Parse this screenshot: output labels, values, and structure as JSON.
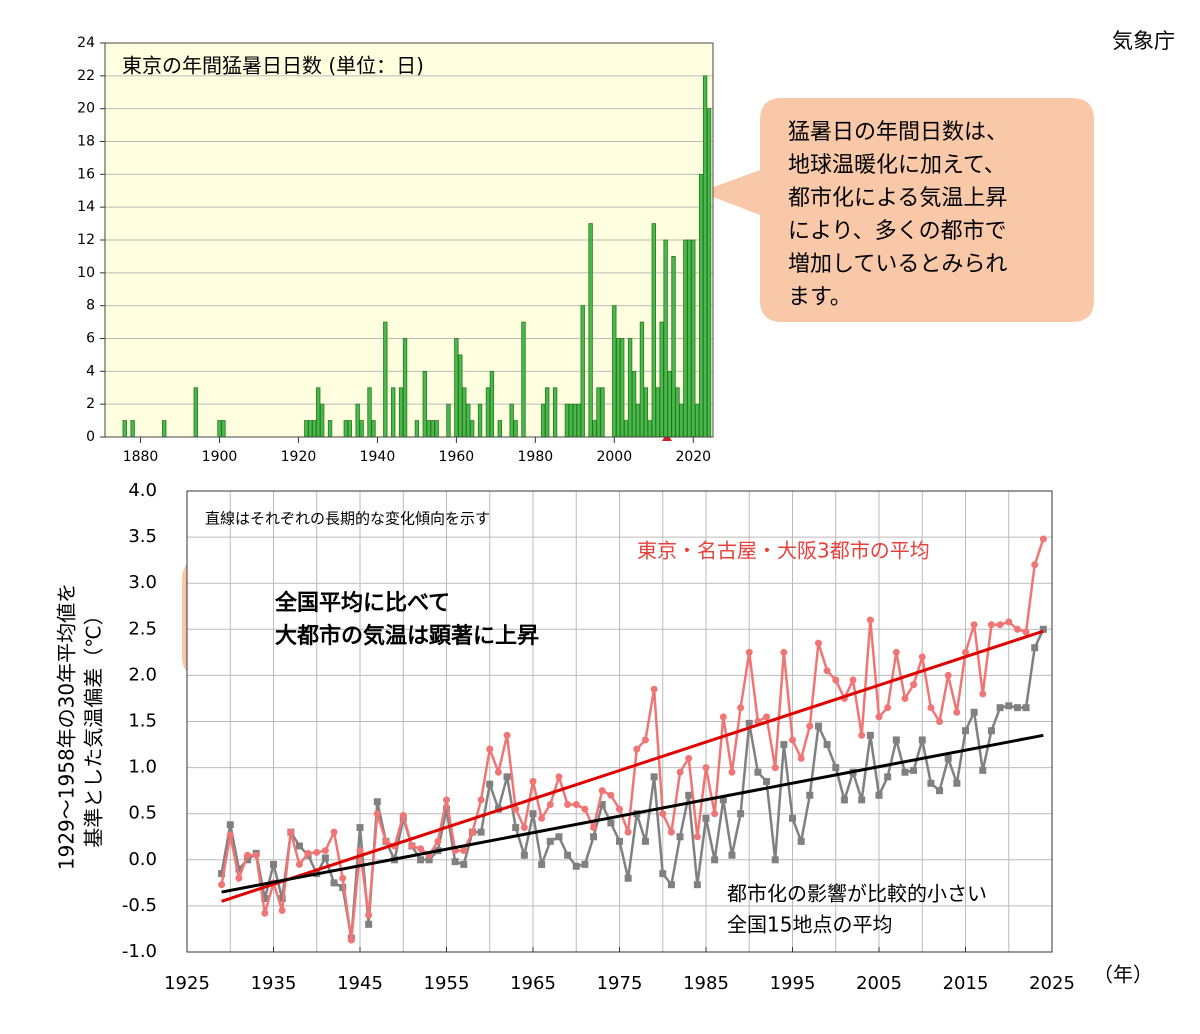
{
  "source": "気象庁",
  "chart_data": [
    {
      "type": "bar",
      "title": "東京の年間猛暑日日数 (単位：日)",
      "annotation": [
        "猛暑日の年間日数は、",
        "地球温暖化に加えて、",
        "都市化による気温上昇",
        "により、多くの都市で",
        "増加しているとみられ",
        "ます。"
      ],
      "x": [
        1876,
        1878,
        1886,
        1894,
        1900,
        1901,
        1922,
        1923,
        1924,
        1925,
        1926,
        1928,
        1932,
        1933,
        1935,
        1936,
        1938,
        1939,
        1942,
        1944,
        1946,
        1947,
        1950,
        1952,
        1953,
        1954,
        1955,
        1958,
        1960,
        1961,
        1962,
        1963,
        1964,
        1966,
        1968,
        1969,
        1971,
        1974,
        1975,
        1977,
        1982,
        1983,
        1985,
        1988,
        1989,
        1990,
        1991,
        1992,
        1994,
        1995,
        1996,
        1997,
        2000,
        2001,
        2002,
        2003,
        2004,
        2005,
        2006,
        2007,
        2008,
        2009,
        2010,
        2011,
        2012,
        2013,
        2014,
        2015,
        2016,
        2017,
        2018,
        2019,
        2020,
        2021,
        2022,
        2023,
        2024
      ],
      "values": [
        1,
        1,
        1,
        3,
        1,
        1,
        1,
        1,
        1,
        3,
        2,
        1,
        1,
        1,
        2,
        1,
        3,
        1,
        7,
        3,
        3,
        6,
        1,
        4,
        1,
        1,
        1,
        2,
        6,
        5,
        3,
        2,
        1,
        2,
        3,
        4,
        1,
        2,
        1,
        7,
        2,
        3,
        3,
        2,
        2,
        2,
        2,
        8,
        13,
        1,
        3,
        3,
        8,
        6,
        6,
        1,
        6,
        4,
        2,
        7,
        3,
        1,
        13,
        3,
        7,
        12,
        4,
        11,
        3,
        2,
        12,
        12,
        12,
        2,
        16,
        22,
        20
      ],
      "color": "#4cb84c",
      "edge": "#1f7a1f",
      "xlim": [
        1871,
        2025
      ],
      "xticks": [
        1880,
        1900,
        1920,
        1940,
        1960,
        1980,
        2000,
        2020
      ],
      "ylim": [
        0,
        24
      ],
      "yticks": [
        0,
        2,
        4,
        6,
        8,
        10,
        12,
        14,
        16,
        18,
        20,
        22,
        24
      ],
      "grid": true,
      "background": "#ffffe0"
    },
    {
      "type": "line",
      "note": "直線はそれぞれの長期的な変化傾向を示す",
      "annotation": [
        "全国平均に比べて",
        "大都市の気温は顕著に上昇"
      ],
      "y_label": [
        "1929～1958年の30年平均値を",
        "基準とした気温偏差（℃）"
      ],
      "x_label": "（年）",
      "x": [
        1929,
        1930,
        1931,
        1932,
        1933,
        1934,
        1935,
        1936,
        1937,
        1938,
        1939,
        1940,
        1941,
        1942,
        1943,
        1944,
        1945,
        1946,
        1947,
        1948,
        1949,
        1950,
        1951,
        1952,
        1953,
        1954,
        1955,
        1956,
        1957,
        1958,
        1959,
        1960,
        1961,
        1962,
        1963,
        1964,
        1965,
        1966,
        1967,
        1968,
        1969,
        1970,
        1971,
        1972,
        1973,
        1974,
        1975,
        1976,
        1977,
        1978,
        1979,
        1980,
        1981,
        1982,
        1983,
        1984,
        1985,
        1986,
        1987,
        1988,
        1989,
        1990,
        1991,
        1992,
        1993,
        1994,
        1995,
        1996,
        1997,
        1998,
        1999,
        2000,
        2001,
        2002,
        2003,
        2004,
        2005,
        2006,
        2007,
        2008,
        2009,
        2010,
        2011,
        2012,
        2013,
        2014,
        2015,
        2016,
        2017,
        2018,
        2019,
        2020,
        2021,
        2022,
        2023,
        2024
      ],
      "series": [
        {
          "name": "東京・名古屋・大阪3都市の平均",
          "color": "#f07575",
          "marker": "circle",
          "values": [
            -0.27,
            0.27,
            -0.2,
            0.05,
            0.05,
            -0.58,
            -0.25,
            -0.55,
            0.3,
            -0.05,
            0.07,
            0.08,
            0.1,
            0.3,
            -0.2,
            -0.87,
            0.1,
            -0.6,
            0.5,
            0.2,
            0.15,
            0.48,
            0.15,
            0.12,
            0.05,
            0.2,
            0.65,
            0.1,
            0.1,
            0.3,
            0.65,
            1.2,
            0.95,
            1.35,
            0.55,
            0.35,
            0.85,
            0.45,
            0.6,
            0.9,
            0.6,
            0.6,
            0.55,
            0.35,
            0.75,
            0.7,
            0.55,
            0.3,
            1.2,
            1.3,
            1.85,
            0.5,
            0.3,
            0.95,
            1.1,
            0.25,
            1.0,
            0.5,
            1.55,
            0.95,
            1.65,
            2.25,
            1.5,
            1.55,
            1.0,
            2.25,
            1.3,
            1.1,
            1.45,
            2.35,
            2.05,
            1.95,
            1.75,
            1.95,
            1.35,
            2.6,
            1.55,
            1.65,
            2.25,
            1.75,
            1.9,
            2.2,
            1.65,
            1.5,
            2.0,
            1.6,
            2.25,
            2.55,
            1.8,
            2.55,
            2.55,
            2.58,
            2.5,
            2.47,
            3.2,
            3.48
          ]
        },
        {
          "name": [
            "都市化の影響が比較的小さい",
            "全国15地点の平均"
          ],
          "color": "#808080",
          "marker": "square",
          "values": [
            -0.15,
            0.38,
            -0.1,
            0.0,
            0.07,
            -0.42,
            -0.05,
            -0.42,
            0.3,
            0.15,
            0.05,
            -0.15,
            0.02,
            -0.25,
            -0.3,
            -0.85,
            0.35,
            -0.7,
            0.63,
            0.2,
            0.0,
            0.45,
            0.15,
            0.0,
            0.0,
            0.1,
            0.55,
            -0.02,
            -0.05,
            0.3,
            0.3,
            0.82,
            0.55,
            0.9,
            0.35,
            0.05,
            0.5,
            -0.05,
            0.2,
            0.25,
            0.05,
            -0.07,
            -0.05,
            0.25,
            0.6,
            0.4,
            0.2,
            -0.2,
            0.5,
            0.2,
            0.9,
            -0.15,
            -0.27,
            0.25,
            0.7,
            -0.27,
            0.45,
            0.0,
            0.65,
            0.05,
            0.5,
            1.48,
            0.95,
            0.85,
            0.0,
            1.25,
            0.45,
            0.2,
            0.7,
            1.45,
            1.25,
            1.0,
            0.65,
            0.95,
            0.65,
            1.35,
            0.7,
            0.9,
            1.3,
            0.95,
            0.97,
            1.3,
            0.83,
            0.75,
            1.1,
            0.83,
            1.4,
            1.6,
            0.97,
            1.4,
            1.65,
            1.67,
            1.65,
            1.65,
            2.3,
            2.5
          ]
        }
      ],
      "trends": [
        {
          "color": "#e00000",
          "x": [
            1929,
            2024
          ],
          "values": [
            -0.45,
            2.48
          ]
        },
        {
          "color": "#000000",
          "x": [
            1929,
            2024
          ],
          "values": [
            -0.35,
            1.35
          ]
        }
      ],
      "xlim": [
        1925,
        2025
      ],
      "xticks": [
        1925,
        1935,
        1945,
        1955,
        1965,
        1975,
        1985,
        1995,
        2005,
        2015,
        2025
      ],
      "xgrid": [
        1925,
        1930,
        1935,
        1940,
        1945,
        1950,
        1955,
        1960,
        1965,
        1970,
        1975,
        1980,
        1985,
        1990,
        1995,
        2000,
        2005,
        2010,
        2015,
        2020,
        2025
      ],
      "ylim": [
        -1,
        4
      ],
      "yticks": [
        {
          "value": -1,
          "label": "-1.0"
        },
        -0.5,
        {
          "value": 0,
          "label": "0.0"
        },
        0.5,
        {
          "value": 1,
          "label": "1.0"
        },
        1.5,
        {
          "value": 2,
          "label": "2.0"
        },
        2.5,
        {
          "value": 3,
          "label": "3.0"
        },
        3.5,
        {
          "value": 4,
          "label": "4.0"
        }
      ],
      "grid": true
    }
  ]
}
